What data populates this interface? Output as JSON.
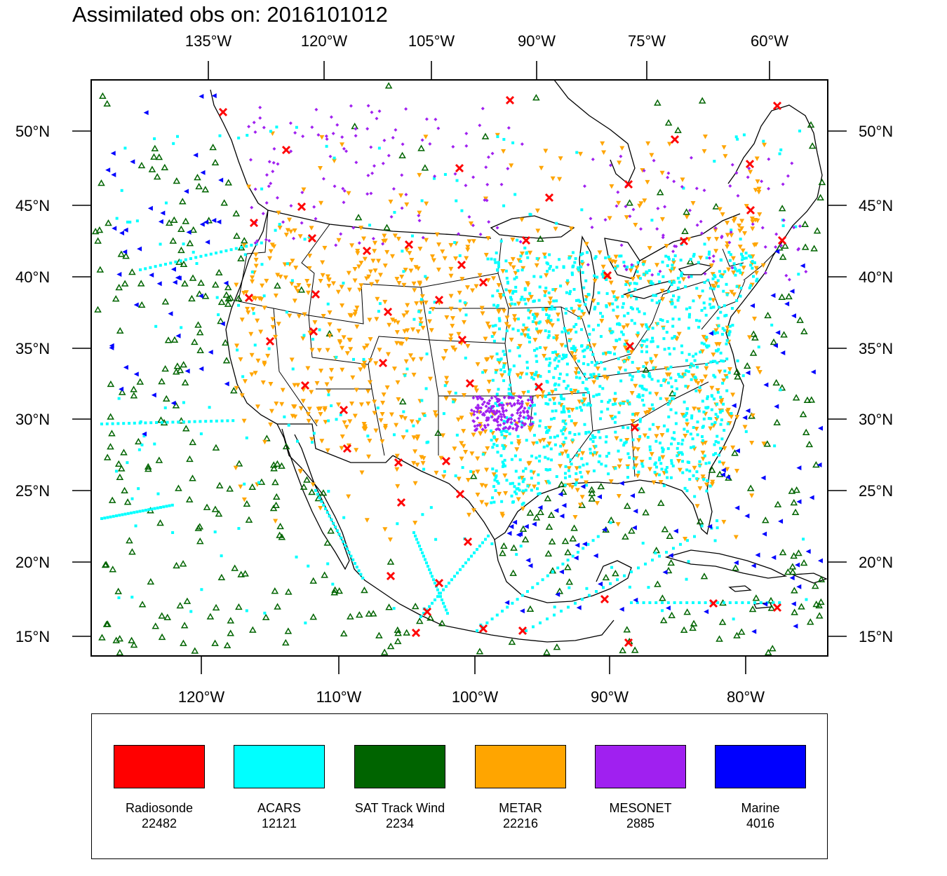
{
  "title": "Assimilated obs on: 2016101012",
  "top_lon_labels": [
    "135°W",
    "120°W",
    "105°W",
    "90°W",
    "75°W",
    "60°W"
  ],
  "bottom_lon_labels": [
    "120°W",
    "110°W",
    "100°W",
    "90°W",
    "80°W"
  ],
  "lat_labels": [
    "50°N",
    "45°N",
    "40°N",
    "35°N",
    "30°N",
    "25°N",
    "20°N",
    "15°N"
  ],
  "legend": [
    {
      "name": "Radiosonde",
      "count": "22482",
      "color": "#ff0000",
      "marker": "x-cross"
    },
    {
      "name": "ACARS",
      "count": "12121",
      "color": "#00ffff",
      "marker": "square-dot"
    },
    {
      "name": "SAT Track Wind",
      "count": "2234",
      "color": "#006400",
      "marker": "open-triangle"
    },
    {
      "name": "METAR",
      "count": "22216",
      "color": "#ffa500",
      "marker": "down-triangle"
    },
    {
      "name": "MESONET",
      "count": "2885",
      "color": "#a020f0",
      "marker": "diamond"
    },
    {
      "name": "Marine",
      "count": "4016",
      "color": "#0000ff",
      "marker": "left-triangle"
    }
  ]
}
